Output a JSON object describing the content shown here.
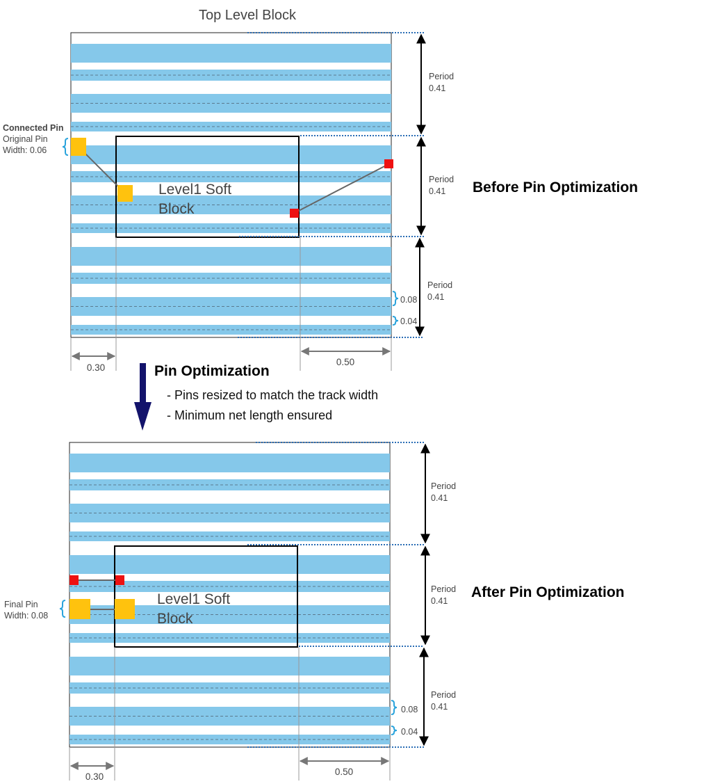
{
  "title": "Top Level Block",
  "panel_before": {
    "heading": "Before Pin Optimization",
    "soft_block_label_line1": "Level1 Soft",
    "soft_block_label_line2": "Block",
    "connected_pin_label": "Connected Pin",
    "pin_label_line1": "Original Pin",
    "pin_label_line2": "Width: 0.06",
    "period_word": "Period",
    "period_value": "0.41",
    "track_width_wide": "0.08",
    "track_width_narrow": "0.04",
    "dim_left": "0.30",
    "dim_right": "0.50"
  },
  "step": {
    "title": "Pin Optimization",
    "bullet1": "- Pins resized to match the track width",
    "bullet2": "- Minimum net length ensured"
  },
  "panel_after": {
    "heading": "After Pin Optimization",
    "soft_block_label_line1": "Level1 Soft",
    "soft_block_label_line2": "Block",
    "pin_label_line1": "Final Pin",
    "pin_label_line2": "Width: 0.08",
    "period_word": "Period",
    "period_value": "0.41",
    "track_width_wide": "0.08",
    "track_width_narrow": "0.04",
    "dim_left": "0.30",
    "dim_right": "0.50"
  },
  "colors": {
    "track": "#85c8ea",
    "pin_orange": "#ffc20e",
    "pin_red": "#ee1111",
    "brace": "#29a3dc",
    "arrow_navy": "#13136b",
    "dotted_guide": "#2a6db5"
  }
}
